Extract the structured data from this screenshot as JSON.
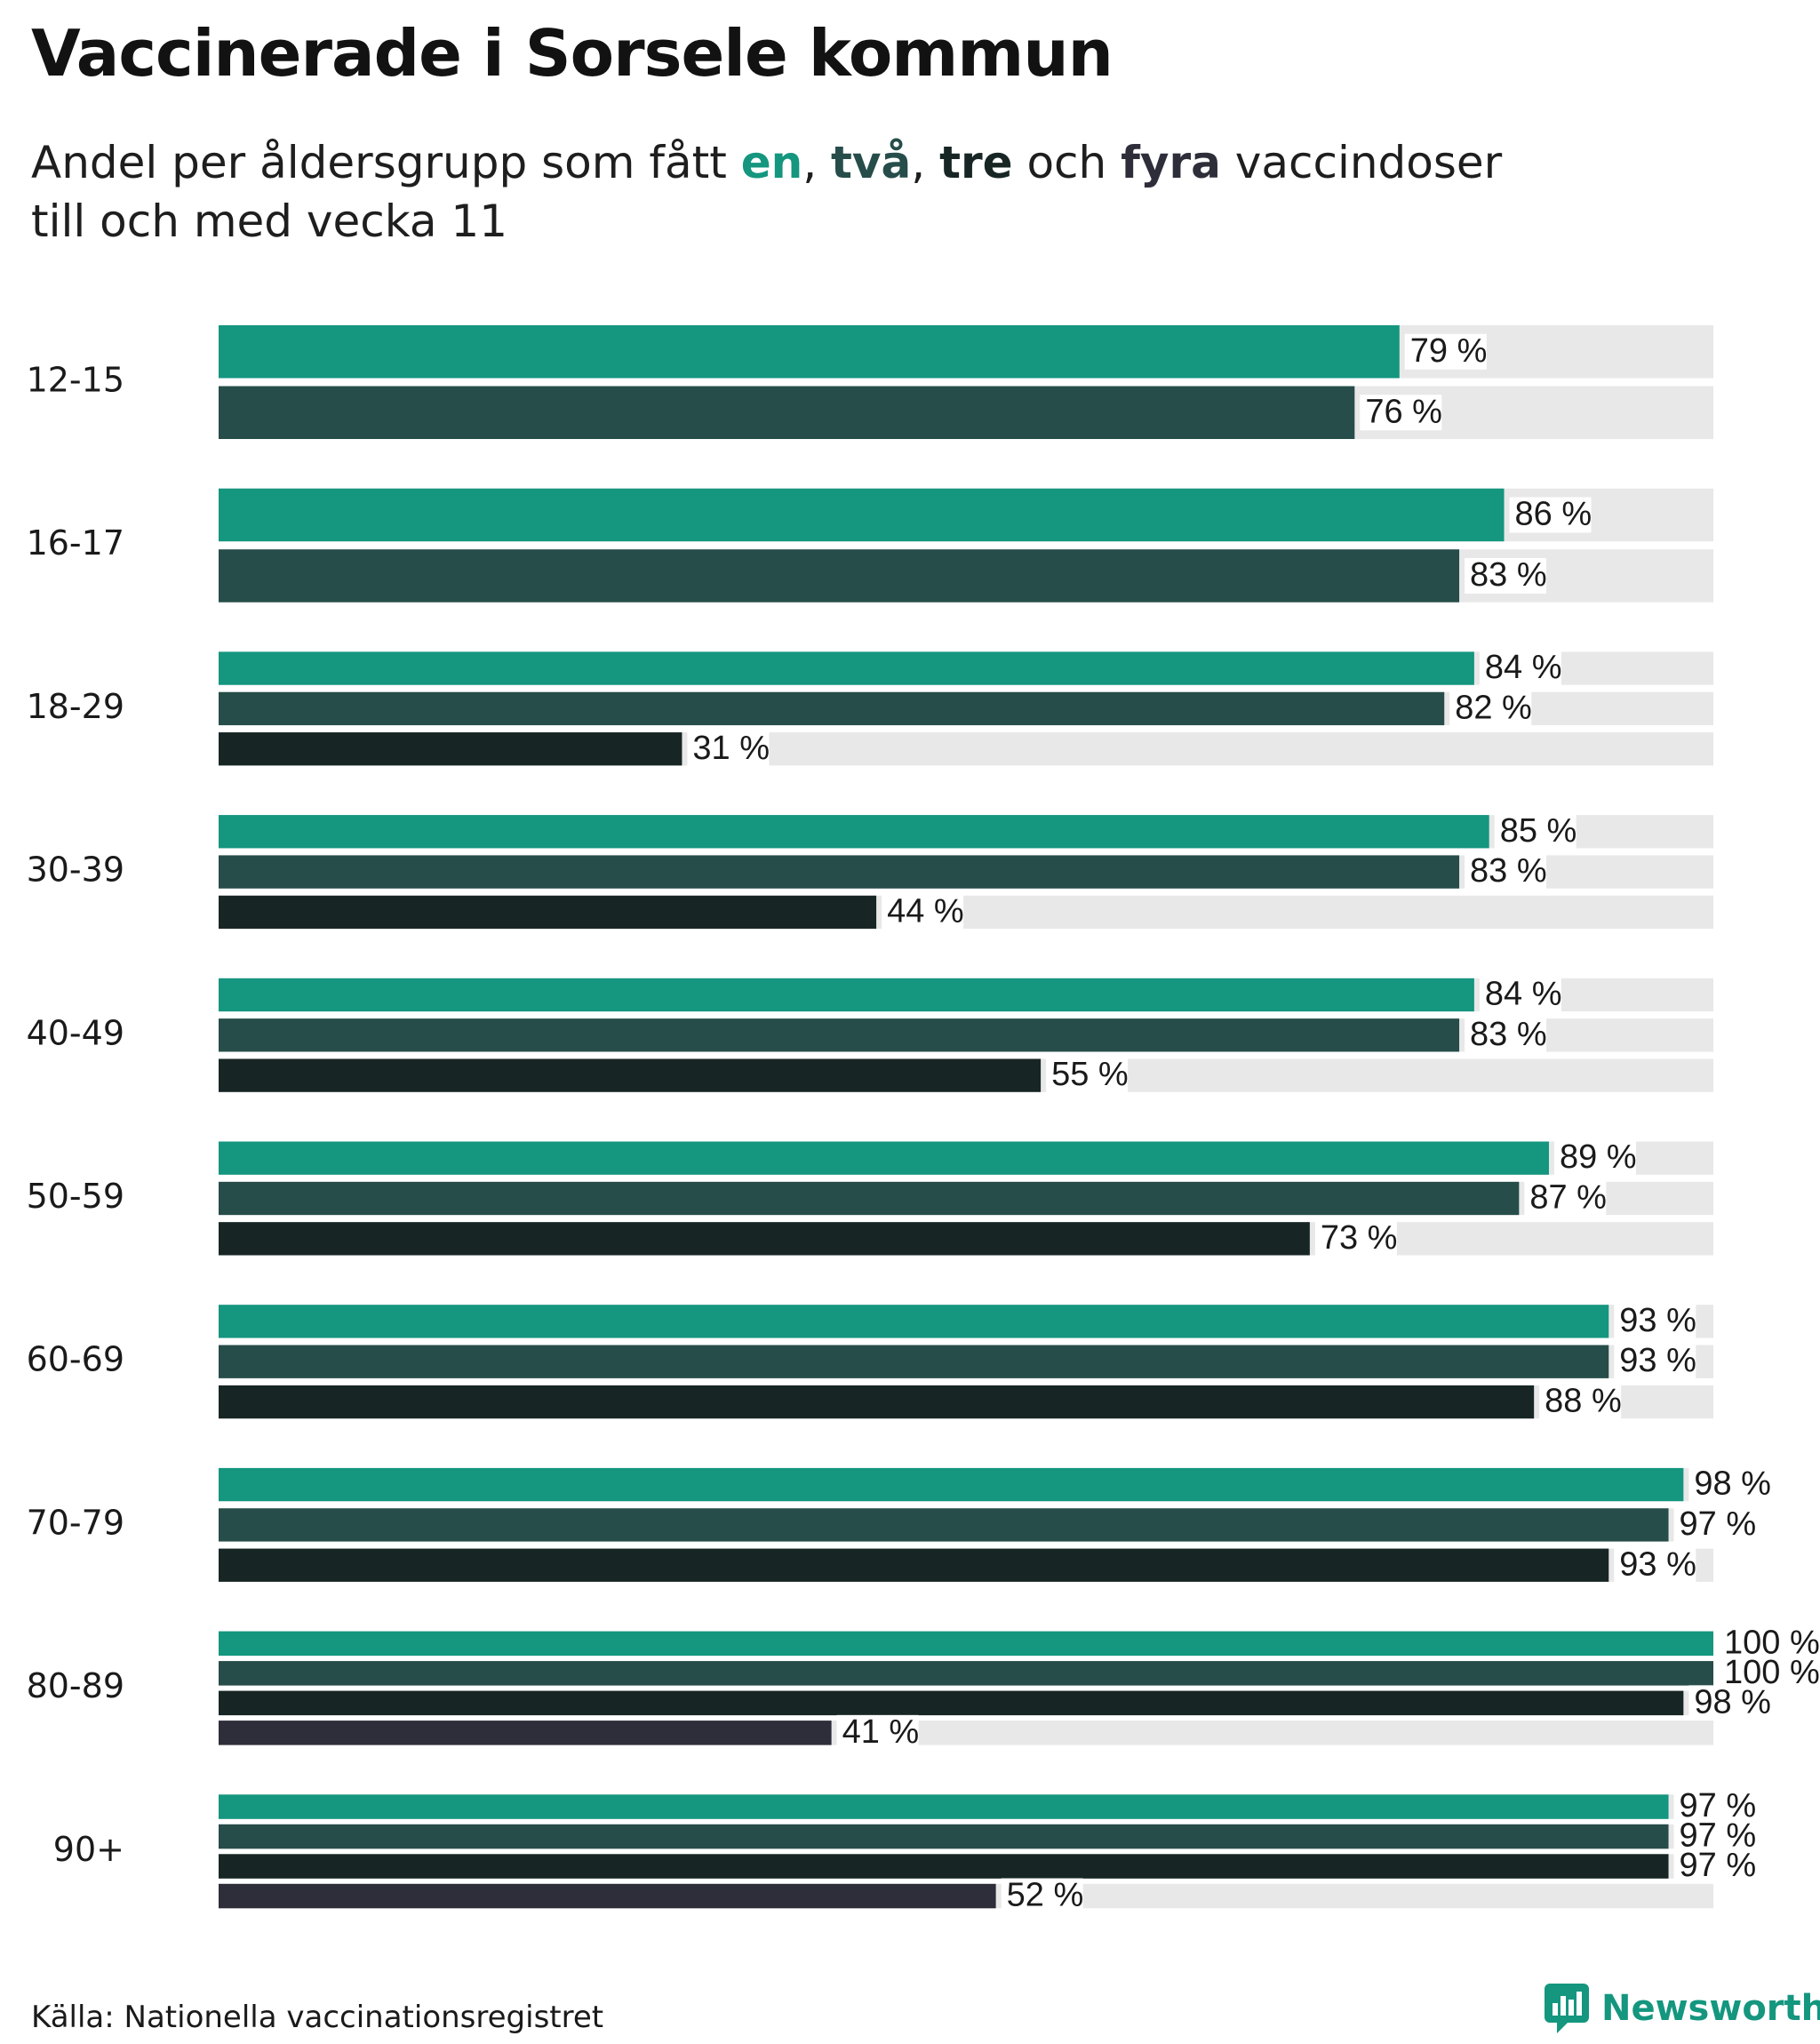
{
  "title": "Vaccinerade i Sorsele kommun",
  "subtitle": {
    "part1": "Andel per åldersgrupp som fått ",
    "dose1": "en",
    "sep1": ", ",
    "dose2": "två",
    "sep2": ", ",
    "dose3": "tre",
    "sep3": " och ",
    "dose4": "fyra",
    "part2": " vaccindoser",
    "line2": "till och med vecka 11"
  },
  "colors": {
    "dose1": "#14967f",
    "dose2": "#264d49",
    "dose3": "#172625",
    "dose4": "#2e2e3a",
    "track": "#e8e8e8"
  },
  "chart_data": {
    "type": "bar",
    "orientation": "horizontal",
    "value_suffix": " %",
    "xlim": [
      0,
      100
    ],
    "categories": [
      "12-15",
      "16-17",
      "18-29",
      "30-39",
      "40-49",
      "50-59",
      "60-69",
      "70-79",
      "80-89",
      "90+"
    ],
    "series": [
      {
        "name": "en",
        "values": [
          79,
          86,
          84,
          85,
          84,
          89,
          93,
          98,
          100,
          97
        ]
      },
      {
        "name": "två",
        "values": [
          76,
          83,
          82,
          83,
          83,
          87,
          93,
          97,
          100,
          97
        ]
      },
      {
        "name": "tre",
        "values": [
          null,
          null,
          31,
          44,
          55,
          73,
          88,
          93,
          98,
          97
        ]
      },
      {
        "name": "fyra",
        "values": [
          null,
          null,
          null,
          null,
          null,
          null,
          null,
          null,
          41,
          52
        ]
      }
    ]
  },
  "source": "Källa: Nationella vaccinationsregistret",
  "brand": {
    "name": "Newsworthy",
    "icon": "newsworthy-logo-icon"
  }
}
